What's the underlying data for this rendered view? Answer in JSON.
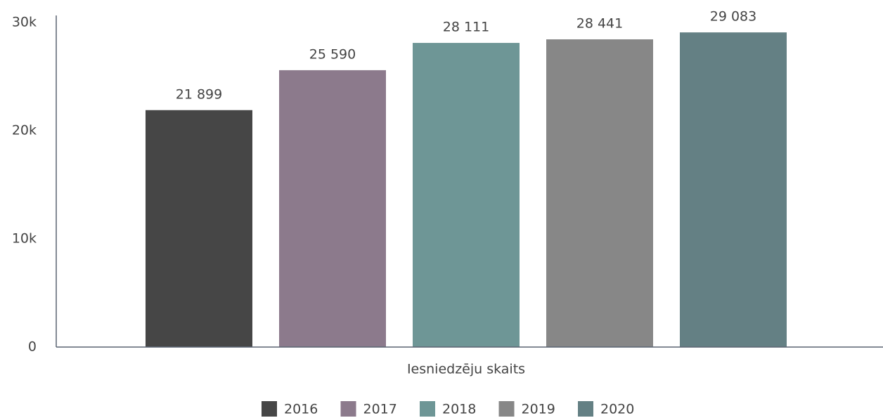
{
  "chart_data": {
    "type": "bar",
    "categories": [
      "Iesniedzēju skaits"
    ],
    "series": [
      {
        "name": "2016",
        "color": "#464646",
        "values": [
          21899
        ],
        "value_labels": [
          "21 899"
        ]
      },
      {
        "name": "2017",
        "color": "#8c7a8c",
        "values": [
          25590
        ],
        "value_labels": [
          "25 590"
        ]
      },
      {
        "name": "2018",
        "color": "#6e9696",
        "values": [
          28111
        ],
        "value_labels": [
          "28 111"
        ]
      },
      {
        "name": "2019",
        "color": "#878787",
        "values": [
          28441
        ],
        "value_labels": [
          "28 441"
        ]
      },
      {
        "name": "2020",
        "color": "#648084",
        "values": [
          29083
        ],
        "value_labels": [
          "29 083"
        ]
      }
    ],
    "ylim": [
      0,
      30000
    ],
    "yticks": [
      0,
      {
        "value": 10000,
        "label": "10k"
      },
      {
        "value": 20000,
        "label": "20k"
      },
      {
        "value": 30000,
        "label": "30k"
      }
    ],
    "grid": false,
    "legend": "bottom"
  }
}
